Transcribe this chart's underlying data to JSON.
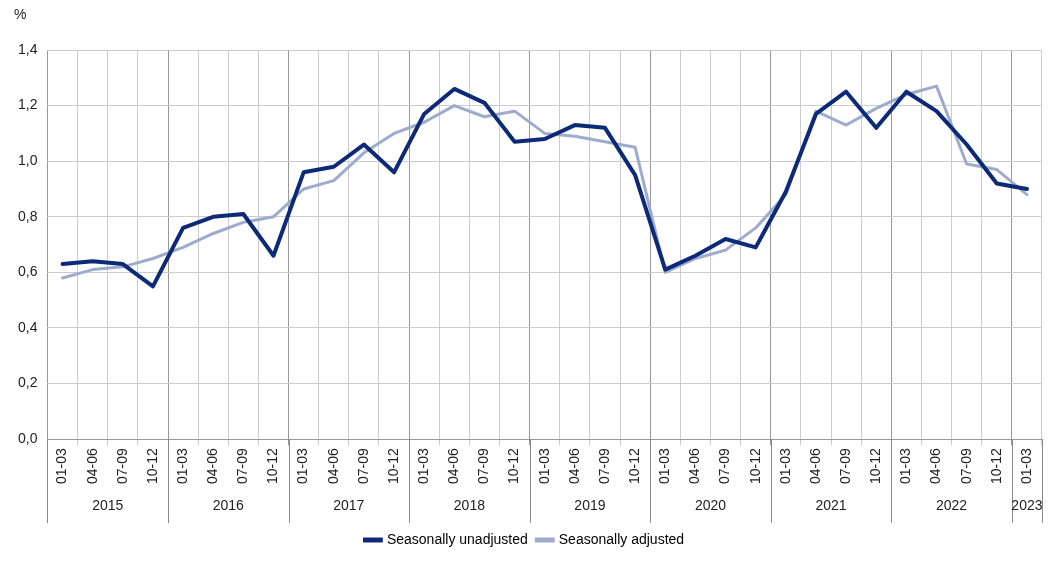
{
  "chart_data": {
    "type": "line",
    "ylabel": "%",
    "categories": [
      "01-03",
      "04-06",
      "07-09",
      "10-12",
      "01-03",
      "04-06",
      "07-09",
      "10-12",
      "01-03",
      "04-06",
      "07-09",
      "10-12",
      "01-03",
      "04-06",
      "07-09",
      "10-12",
      "01-03",
      "04-06",
      "07-09",
      "10-12",
      "01-03",
      "04-06",
      "07-09",
      "10-12",
      "01-03",
      "04-06",
      "07-09",
      "10-12",
      "01-03",
      "04-06",
      "07-09",
      "10-12",
      "01-03"
    ],
    "series": [
      {
        "name": "Seasonally unadjusted",
        "color": "#0d2a78",
        "values": [
          0.63,
          0.64,
          0.63,
          0.55,
          0.76,
          0.8,
          0.81,
          0.66,
          0.96,
          0.98,
          1.06,
          0.96,
          1.17,
          1.26,
          1.21,
          1.07,
          1.08,
          1.13,
          1.12,
          0.95,
          0.61,
          0.66,
          0.72,
          0.69,
          0.89,
          1.17,
          1.25,
          1.12,
          1.25,
          1.18,
          1.06,
          0.92,
          0.9
        ]
      },
      {
        "name": "Seasonally adjusted",
        "color": "#9eabcc",
        "values": [
          0.58,
          0.61,
          0.62,
          0.65,
          0.69,
          0.74,
          0.78,
          0.8,
          0.9,
          0.93,
          1.03,
          1.1,
          1.14,
          1.2,
          1.16,
          1.18,
          1.1,
          1.09,
          1.07,
          1.05,
          0.6,
          0.65,
          0.68,
          0.76,
          0.88,
          1.18,
          1.13,
          1.19,
          1.24,
          1.27,
          0.99,
          0.97,
          0.88
        ]
      }
    ],
    "annotations": [
      "2015",
      "2016",
      "2017",
      "2018",
      "2019",
      "2020",
      "2021",
      "2022",
      "2023"
    ],
    "ylim": [
      0,
      1.4
    ],
    "yticks": [
      {
        "value": 0,
        "label": "0,0"
      },
      {
        "value": 0.2,
        "label": "0,2"
      },
      {
        "value": 0.4,
        "label": "0,4"
      },
      {
        "value": 0.6,
        "label": "0,6"
      },
      {
        "value": 0.8,
        "label": "0,8"
      },
      {
        "value": 1.0,
        "label": "1,0"
      },
      {
        "value": 1.2,
        "label": "1,2"
      },
      {
        "value": 1.4,
        "label": "1,4"
      }
    ],
    "grid": true,
    "legend": "bottom",
    "marker": "none",
    "line_style": "solid"
  }
}
